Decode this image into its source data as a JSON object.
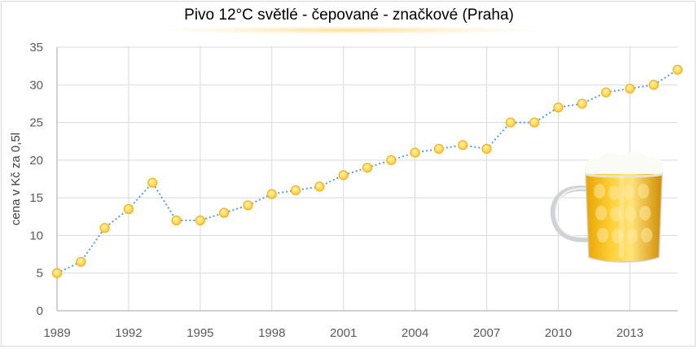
{
  "title": "Pivo 12°C světlé - čepované - značkové (Praha)",
  "chart_data": {
    "type": "line",
    "title": "Pivo 12°C světlé - čepované - značkové (Praha)",
    "xlabel": "",
    "ylabel": "cena v Kč za 0,5l",
    "ylim": [
      0,
      35
    ],
    "yticks": [
      "0",
      "5",
      "10",
      "15",
      "20",
      "25",
      "30",
      "35"
    ],
    "xlim": [
      1989,
      2015
    ],
    "xticks": [
      "1989",
      "1992",
      "1995",
      "1998",
      "2001",
      "2004",
      "2007",
      "2010",
      "2013"
    ],
    "grid": true,
    "legend": "none",
    "series": [
      {
        "x": [
          1989,
          1990,
          1991,
          1992,
          1993,
          1994,
          1995,
          1996,
          1997,
          1998,
          1999,
          2000,
          2001,
          2002,
          2003,
          2004,
          2005,
          2006,
          2007,
          2008,
          2009,
          2010,
          2011,
          2012,
          2013,
          2014,
          2015
        ],
        "values": [
          5,
          6.5,
          11,
          13.5,
          17,
          12,
          12,
          13,
          14,
          15.5,
          16,
          16.5,
          18,
          19,
          20,
          21,
          21.5,
          22,
          21.5,
          25,
          25,
          27,
          27.5,
          29,
          29.5,
          30,
          32
        ]
      }
    ],
    "colors": {
      "line": "#5b9bd5",
      "marker_fill": "#ffd75e",
      "marker_stroke": "#f2b01e",
      "grid": "#d9d9d9",
      "axis": "#a6a6a6"
    },
    "decoration": "beer-mug-icon"
  }
}
